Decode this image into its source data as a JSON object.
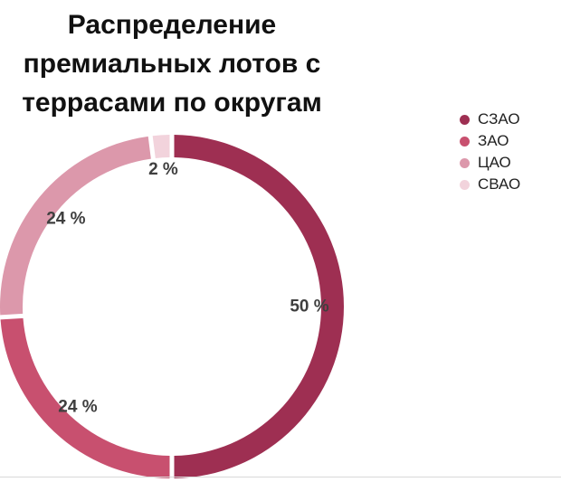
{
  "chart_data": {
    "type": "pie",
    "title": "Распределение премиальных лотов с террасами по округам",
    "categories": [
      "СЗАО",
      "ЗАО",
      "ЦАО",
      "СВАО"
    ],
    "values": [
      50,
      24,
      24,
      2
    ],
    "data_labels": [
      "50 %",
      "24 %",
      "24 %",
      "2 %"
    ],
    "colors": [
      "#9e2f52",
      "#c8506f",
      "#dc98ab",
      "#f2d3dc"
    ],
    "legend_position": "right"
  }
}
